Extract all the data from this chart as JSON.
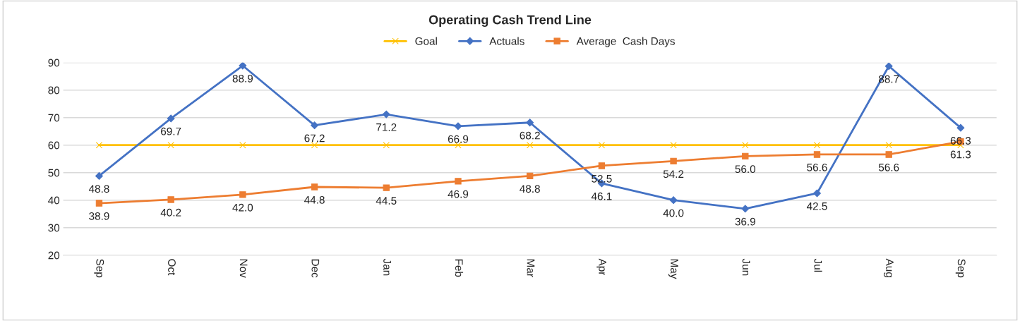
{
  "chart_data": {
    "type": "line",
    "title": "Operating Cash Trend Line",
    "categories": [
      "Sep",
      "Oct",
      "Nov",
      "Dec",
      "Jan",
      "Feb",
      "Mar",
      "Apr",
      "May",
      "Jun",
      "Jul",
      "Aug",
      "Sep"
    ],
    "series": [
      {
        "name": "Goal",
        "color": "#ffc000",
        "marker": "cross",
        "values": [
          60,
          60,
          60,
          60,
          60,
          60,
          60,
          60,
          60,
          60,
          60,
          60,
          60
        ]
      },
      {
        "name": "Actuals",
        "color": "#4472c4",
        "marker": "diamond",
        "values": [
          48.8,
          69.7,
          88.9,
          67.2,
          71.2,
          66.9,
          68.2,
          46.1,
          40.0,
          36.9,
          42.5,
          88.7,
          66.3
        ],
        "value_labels": [
          "48.8",
          "69.7",
          "88.9",
          "67.2",
          "71.2",
          "66.9",
          "68.2",
          "46.1",
          "40.0",
          "36.9",
          "42.5",
          "88.7",
          "66.3"
        ]
      },
      {
        "name": "Average  Cash Days",
        "color": "#ed7d31",
        "marker": "square",
        "values": [
          38.9,
          40.2,
          42.0,
          44.8,
          44.5,
          46.9,
          48.8,
          52.5,
          54.2,
          56.0,
          56.6,
          56.6,
          61.3
        ],
        "value_labels": [
          "38.9",
          "40.2",
          "42.0",
          "44.8",
          "44.5",
          "46.9",
          "48.8",
          "52.5",
          "54.2",
          "56.0",
          "56.6",
          "56.6",
          "61.3"
        ]
      }
    ],
    "ylim": [
      20,
      90
    ],
    "yticks": [
      20,
      30,
      40,
      50,
      60,
      70,
      80,
      90
    ],
    "grid": "y",
    "legend": "top",
    "line_style": "solid"
  }
}
